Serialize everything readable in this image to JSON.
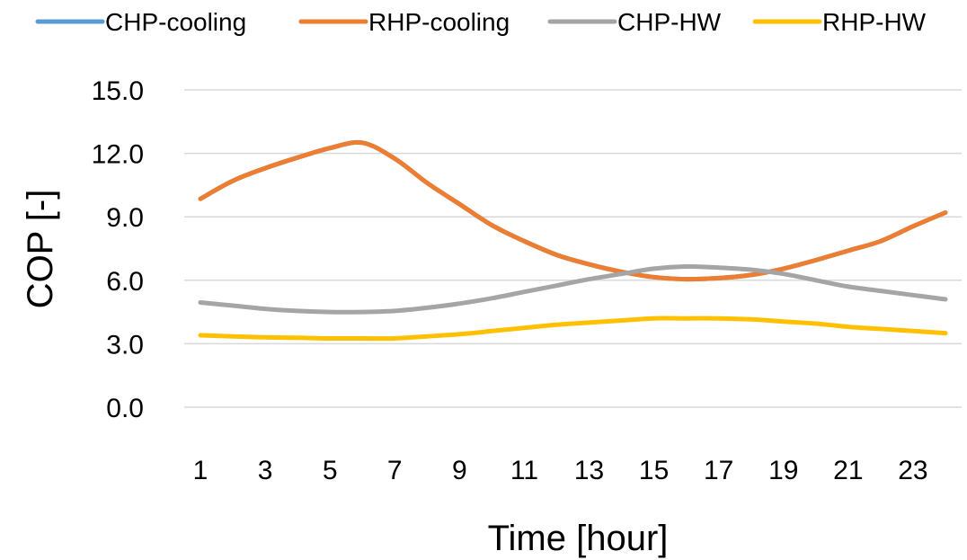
{
  "chart_data": {
    "type": "line",
    "xlabel": "Time [hour]",
    "ylabel": "COP [-]",
    "ylim": [
      0,
      15
    ],
    "yticks": [
      "0.0",
      "3.0",
      "6.0",
      "9.0",
      "12.0",
      "15.0"
    ],
    "x": [
      1,
      2,
      3,
      4,
      5,
      6,
      7,
      8,
      9,
      10,
      11,
      12,
      13,
      14,
      15,
      16,
      17,
      18,
      19,
      20,
      21,
      22,
      23,
      24
    ],
    "xticks": [
      "1",
      "3",
      "5",
      "7",
      "9",
      "11",
      "13",
      "15",
      "17",
      "19",
      "21",
      "23"
    ],
    "grid": true,
    "legend_position": "top",
    "series": [
      {
        "name": "CHP-cooling",
        "color": "#5b9bd5",
        "values": [
          9.85,
          10.7,
          11.3,
          11.8,
          12.25,
          12.5,
          11.75,
          10.6,
          9.6,
          8.6,
          7.85,
          7.2,
          6.75,
          6.4,
          6.15,
          6.05,
          6.1,
          6.25,
          6.55,
          6.95,
          7.4,
          7.85,
          8.55,
          9.2
        ]
      },
      {
        "name": "RHP-cooling",
        "color": "#ed7d31",
        "values": [
          9.85,
          10.7,
          11.3,
          11.8,
          12.25,
          12.5,
          11.75,
          10.6,
          9.6,
          8.6,
          7.85,
          7.2,
          6.75,
          6.4,
          6.15,
          6.05,
          6.1,
          6.25,
          6.55,
          6.95,
          7.4,
          7.85,
          8.55,
          9.2
        ]
      },
      {
        "name": "CHP-HW",
        "color": "#a5a5a5",
        "values": [
          4.95,
          4.8,
          4.65,
          4.55,
          4.5,
          4.5,
          4.55,
          4.7,
          4.9,
          5.15,
          5.45,
          5.75,
          6.05,
          6.3,
          6.55,
          6.65,
          6.6,
          6.5,
          6.3,
          6.0,
          5.7,
          5.5,
          5.3,
          5.1
        ]
      },
      {
        "name": "RHP-HW",
        "color": "#ffc000",
        "values": [
          3.4,
          3.35,
          3.3,
          3.28,
          3.25,
          3.25,
          3.25,
          3.35,
          3.45,
          3.6,
          3.75,
          3.9,
          4.0,
          4.1,
          4.2,
          4.2,
          4.2,
          4.15,
          4.05,
          3.95,
          3.8,
          3.7,
          3.6,
          3.5
        ]
      }
    ]
  }
}
